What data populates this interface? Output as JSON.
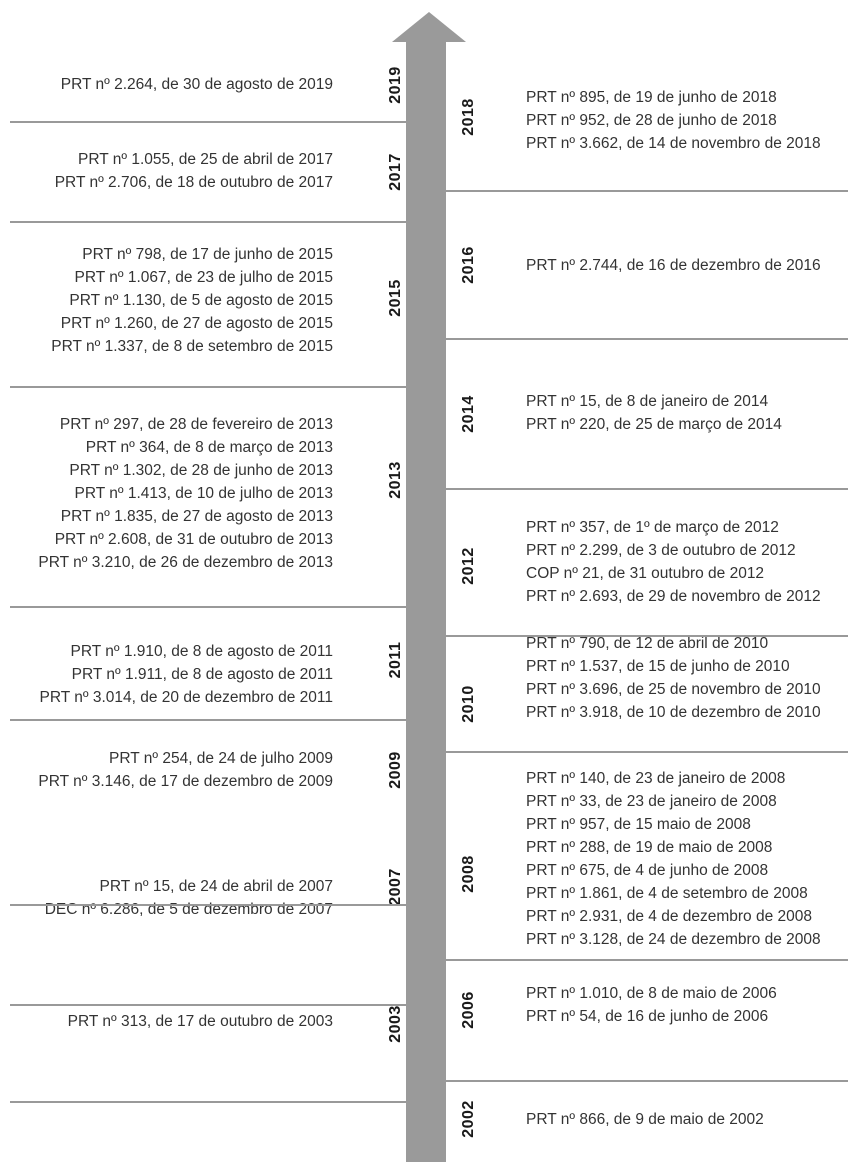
{
  "colors": {
    "arrow": "#9a9a9a",
    "separator": "#999999",
    "text": "#333333",
    "year_text": "#1a1a1a"
  },
  "left": [
    {
      "year": "2019",
      "entries": [
        "PRT nº 2.264, de 30 de agosto de 2019"
      ]
    },
    {
      "year": "2017",
      "entries": [
        "PRT nº 1.055, de 25 de abril de 2017",
        "PRT nº 2.706, de 18 de outubro de 2017"
      ]
    },
    {
      "year": "2015",
      "entries": [
        "PRT nº 798, de 17 de junho de 2015",
        "PRT nº 1.067, de 23 de julho de 2015",
        "PRT nº 1.130, de 5 de agosto de 2015",
        "PRT nº 1.260, de 27 de agosto de 2015",
        "PRT nº 1.337, de 8 de setembro de 2015"
      ]
    },
    {
      "year": "2013",
      "entries": [
        "PRT nº 297, de 28 de fevereiro de 2013",
        "PRT nº 364, de 8 de março de 2013",
        "PRT nº 1.302, de 28 de junho de 2013",
        "PRT nº 1.413, de 10 de julho de 2013",
        "PRT nº 1.835, de 27 de agosto de 2013",
        "PRT nº 2.608, de 31 de outubro de 2013",
        "PRT nº 3.210, de 26 de dezembro de 2013"
      ]
    },
    {
      "year": "2011",
      "entries": [
        "PRT nº 1.910, de 8 de agosto de 2011",
        "PRT nº 1.911, de 8 de agosto de 2011",
        "PRT nº 3.014, de 20 de dezembro de 2011"
      ]
    },
    {
      "year": "2009",
      "entries": [
        "PRT nº 254, de 24 de julho 2009",
        "PRT nº 3.146, de 17 de dezembro de 2009"
      ]
    },
    {
      "year": "2007",
      "entries": [
        "PRT nº 15, de 24 de abril de 2007",
        "DEC nº 6.286, de 5 de dezembro de 2007"
      ]
    },
    {
      "year": "2003",
      "entries": [
        "PRT nº 313, de 17 de outubro de 2003"
      ]
    }
  ],
  "right": [
    {
      "year": "2018",
      "entries": [
        "PRT nº 895, de 19 de junho de 2018",
        "PRT nº 952, de 28 de junho de 2018",
        "PRT nº 3.662, de 14 de novembro de 2018"
      ]
    },
    {
      "year": "2016",
      "entries": [
        "PRT nº 2.744, de 16 de dezembro de 2016"
      ]
    },
    {
      "year": "2014",
      "entries": [
        "PRT nº 15, de 8 de janeiro de 2014",
        "PRT nº 220, de 25 de março de 2014"
      ]
    },
    {
      "year": "2012",
      "entries": [
        "PRT nº 357, de 1º de março de 2012",
        "PRT nº 2.299, de 3 de outubro de 2012",
        "COP nº 21, de 31 outubro de 2012",
        "PRT nº 2.693, de 29 de novembro de 2012"
      ]
    },
    {
      "year": "2010",
      "entries": [
        "PRT nº 790, de 12 de abril de 2010",
        "PRT nº 1.537, de 15 de junho de 2010",
        "PRT nº 3.696, de 25 de novembro de 2010",
        "PRT nº 3.918, de 10 de dezembro de 2010"
      ]
    },
    {
      "year": "2008",
      "entries": [
        "PRT nº 140, de 23 de janeiro de 2008",
        "PRT nº 33, de 23 de janeiro de 2008",
        "PRT nº 957, de 15 maio de 2008",
        "PRT nº 288, de 19 de maio de 2008",
        "PRT nº 675, de 4 de junho de 2008",
        "PRT nº 1.861, de 4 de setembro de 2008",
        "PRT nº 2.931, de 4 de dezembro de 2008",
        "PRT nº 3.128, de 24 de dezembro de 2008"
      ]
    },
    {
      "year": "2006",
      "entries": [
        "PRT nº 1.010, de 8 de maio de 2006",
        "PRT nº 54, de 16 de junho de 2006"
      ]
    },
    {
      "year": "2002",
      "entries": [
        "PRT nº 866, de 9 de maio de 2002"
      ]
    }
  ]
}
